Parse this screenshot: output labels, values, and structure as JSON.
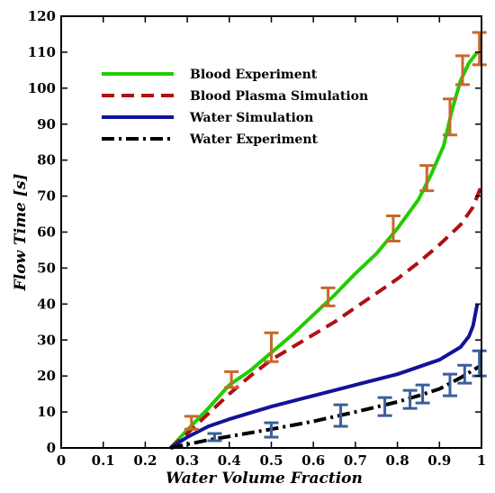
{
  "chart_data": {
    "type": "line",
    "title": "",
    "xlabel": "Water Volume Fraction",
    "ylabel": "Flow Time [s]",
    "xlim": [
      0,
      1
    ],
    "ylim": [
      0,
      120
    ],
    "xticks": [
      0,
      0.1,
      0.2,
      0.3,
      0.4,
      0.5,
      0.6,
      0.7,
      0.8,
      0.9,
      1
    ],
    "xtick_labels": [
      "0",
      "0.1",
      "0.2",
      "0.3",
      "0.4",
      "0.5",
      "0.6",
      "0.7",
      "0.8",
      "0.9",
      "1"
    ],
    "yticks": [
      0,
      10,
      20,
      30,
      40,
      50,
      60,
      70,
      80,
      90,
      100,
      110,
      120
    ],
    "ytick_labels": [
      "0",
      "10",
      "20",
      "30",
      "40",
      "50",
      "60",
      "70",
      "80",
      "90",
      "100",
      "110",
      "120"
    ],
    "grid": false,
    "legend_position": "top-left",
    "series": [
      {
        "name": "Blood Experiment",
        "color": "#22cc00",
        "style": "solid",
        "x": [
          0.26,
          0.3,
          0.35,
          0.4,
          0.45,
          0.5,
          0.55,
          0.6,
          0.65,
          0.7,
          0.75,
          0.8,
          0.85,
          0.88,
          0.91,
          0.93,
          0.95,
          0.97,
          0.99
        ],
        "y": [
          0,
          5,
          11,
          17.5,
          21.5,
          26.5,
          31.5,
          37,
          42.5,
          48.5,
          54,
          61,
          69,
          76,
          84,
          94,
          102,
          107,
          110
        ]
      },
      {
        "name": "Blood Plasma Simulation",
        "color": "#b01010",
        "style": "dashed",
        "x": [
          0.26,
          0.3,
          0.35,
          0.4,
          0.45,
          0.5,
          0.55,
          0.6,
          0.65,
          0.7,
          0.75,
          0.8,
          0.85,
          0.9,
          0.95,
          0.98,
          1.0
        ],
        "y": [
          0,
          4,
          9.5,
          15,
          20,
          24.5,
          28,
          31.5,
          35,
          39,
          43,
          47,
          51.5,
          56.5,
          62,
          67,
          73
        ]
      },
      {
        "name": "Water Simulation",
        "color": "#12129a",
        "style": "solid",
        "x": [
          0.26,
          0.3,
          0.35,
          0.4,
          0.5,
          0.6,
          0.7,
          0.8,
          0.9,
          0.95,
          0.97,
          0.98,
          0.985,
          0.99
        ],
        "y": [
          0,
          3,
          6,
          8,
          11.5,
          14.5,
          17.5,
          20.5,
          24.5,
          28,
          31,
          34,
          37,
          40
        ]
      },
      {
        "name": "Water Experiment",
        "color": "#000000",
        "style": "dashdot",
        "x": [
          0.26,
          0.3,
          0.35,
          0.4,
          0.5,
          0.6,
          0.7,
          0.8,
          0.85,
          0.9,
          0.95,
          1.0
        ],
        "y": [
          0,
          1,
          2.2,
          3.2,
          5.2,
          7.4,
          10,
          12.8,
          14.5,
          16.4,
          19.5,
          23
        ]
      }
    ],
    "error_bars": [
      {
        "series": "Blood Experiment",
        "color": "#c8682a",
        "points": [
          {
            "x": 0.31,
            "y": 7,
            "err": 1.8
          },
          {
            "x": 0.405,
            "y": 19,
            "err": 2.2
          },
          {
            "x": 0.5,
            "y": 28,
            "err": 4
          },
          {
            "x": 0.635,
            "y": 42,
            "err": 2.5
          },
          {
            "x": 0.79,
            "y": 61,
            "err": 3.5
          },
          {
            "x": 0.87,
            "y": 75,
            "err": 3.5
          },
          {
            "x": 0.925,
            "y": 92,
            "err": 5
          },
          {
            "x": 0.955,
            "y": 105,
            "err": 4
          },
          {
            "x": 0.995,
            "y": 111,
            "err": 4.5
          }
        ]
      },
      {
        "series": "Water Experiment",
        "color": "#3a5f9a",
        "points": [
          {
            "x": 0.365,
            "y": 3,
            "err": 1
          },
          {
            "x": 0.5,
            "y": 5,
            "err": 2
          },
          {
            "x": 0.665,
            "y": 9,
            "err": 3
          },
          {
            "x": 0.77,
            "y": 11.5,
            "err": 2.5
          },
          {
            "x": 0.83,
            "y": 13.5,
            "err": 2.5
          },
          {
            "x": 0.86,
            "y": 15,
            "err": 2.5
          },
          {
            "x": 0.925,
            "y": 17.5,
            "err": 3
          },
          {
            "x": 0.96,
            "y": 20.5,
            "err": 2.5
          },
          {
            "x": 0.995,
            "y": 23.5,
            "err": 3.5
          }
        ]
      }
    ]
  }
}
